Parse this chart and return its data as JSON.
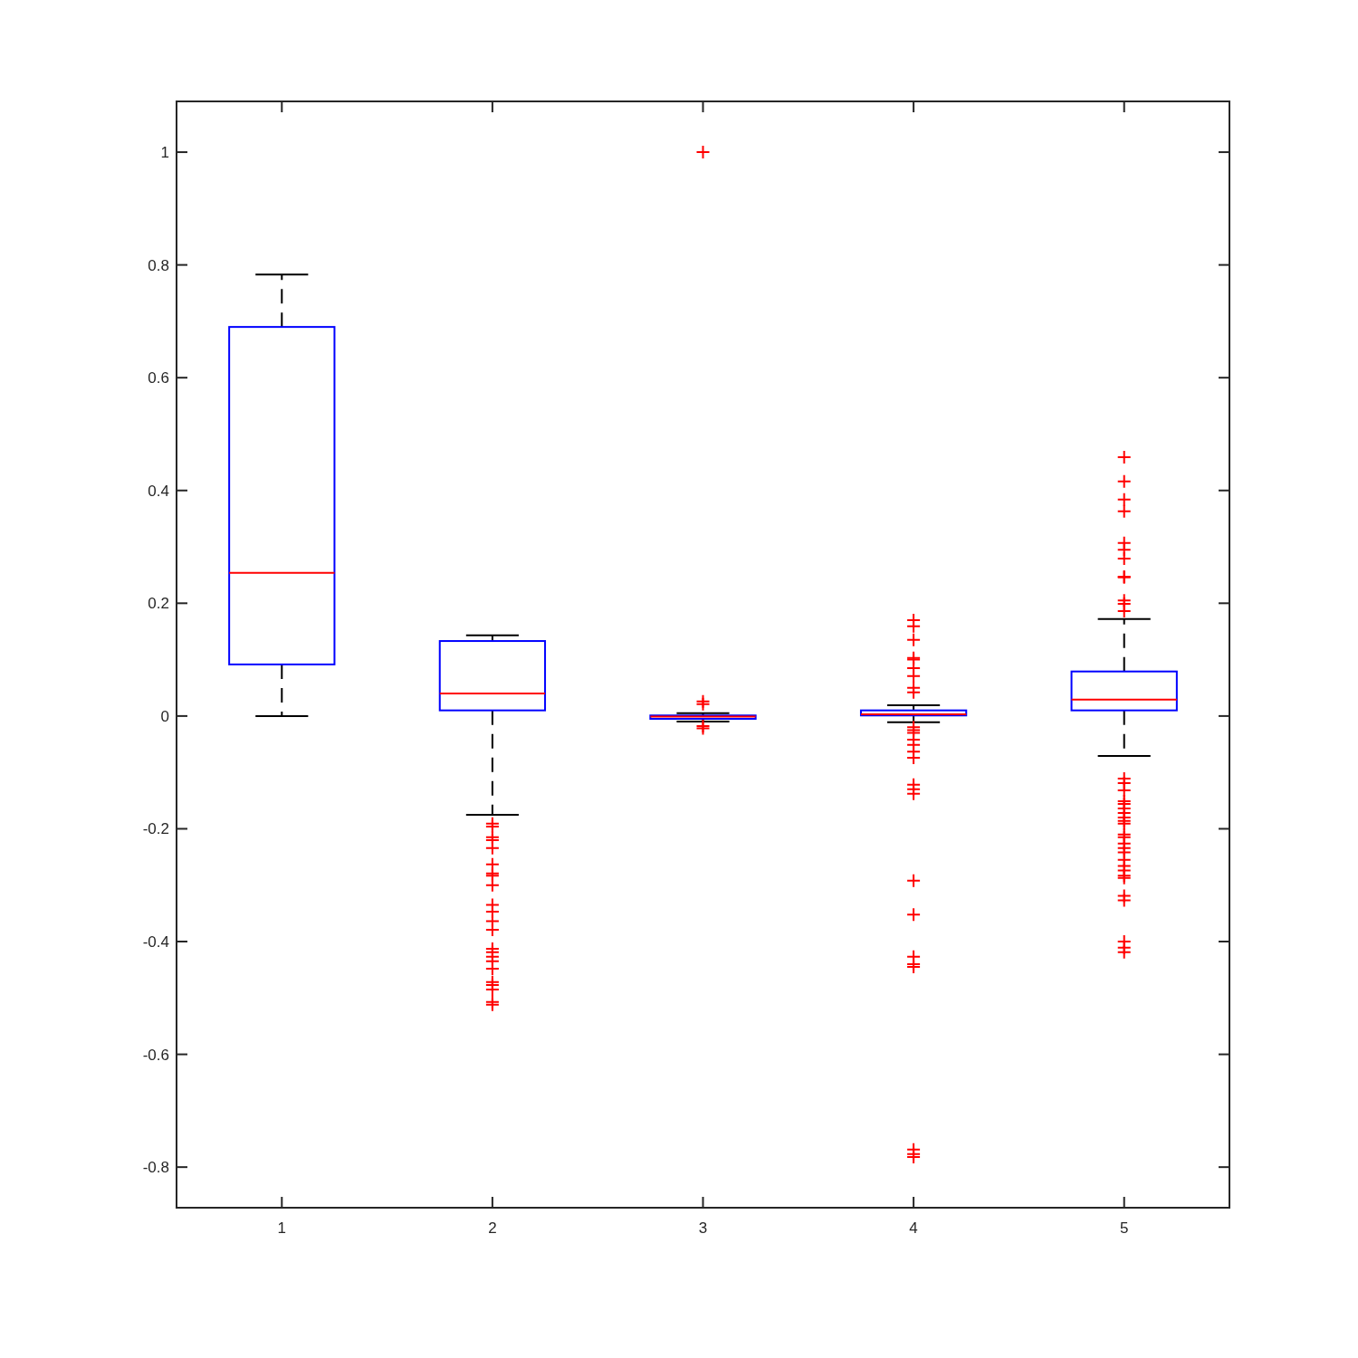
{
  "chart_data": {
    "type": "box",
    "categories": [
      "1",
      "2",
      "3",
      "4",
      "5"
    ],
    "ylim": [
      -0.872,
      1.09
    ],
    "yticks": [
      -0.8,
      -0.6,
      -0.4,
      -0.2,
      0,
      0.2,
      0.4,
      0.6,
      0.8,
      1
    ],
    "grid": false,
    "marker": "cross",
    "series": [
      {
        "color": "#0000ff",
        "boxes": [
          {
            "low": 0,
            "q1": 0.0915,
            "median": 0.254,
            "q3": 0.69,
            "high": 0.783
          },
          {
            "low": -0.175,
            "q1": 0.01,
            "median": 0.04,
            "q3": 0.133,
            "high": 0.143,
            "outliers": [
              -0.191,
              -0.196,
              -0.215,
              -0.22,
              -0.234,
              -0.263,
              -0.279,
              -0.283,
              -0.3,
              -0.335,
              -0.347,
              -0.364,
              -0.379,
              -0.413,
              -0.419,
              -0.427,
              -0.435,
              -0.448,
              -0.472,
              -0.477,
              -0.485,
              -0.507,
              -0.512
            ]
          },
          {
            "low": -0.01,
            "q1": -0.005,
            "median": -0.001,
            "q3": 0.001,
            "high": 0.005,
            "outliers": [
              1.0,
              0.026,
              0.021,
              -0.018,
              -0.022
            ]
          },
          {
            "low": -0.011,
            "q1": 0.001,
            "median": 0.003,
            "q3": 0.01,
            "high": 0.019,
            "outliers": [
              0.17,
              0.159,
              0.135,
              0.103,
              0.1,
              0.085,
              0.071,
              0.05,
              0.042,
              -0.02,
              -0.025,
              -0.03,
              -0.042,
              -0.051,
              -0.063,
              -0.074,
              -0.122,
              -0.13,
              -0.138,
              -0.292,
              -0.352,
              -0.427,
              -0.44,
              -0.445,
              -0.769,
              -0.777,
              -0.782
            ]
          },
          {
            "low": -0.071,
            "q1": 0.01,
            "median": 0.029,
            "q3": 0.079,
            "high": 0.172,
            "outliers": [
              0.459,
              0.416,
              0.384,
              0.363,
              0.307,
              0.295,
              0.279,
              0.247,
              0.246,
              0.205,
              0.199,
              0.186,
              -0.111,
              -0.119,
              -0.132,
              -0.151,
              -0.156,
              -0.164,
              -0.172,
              -0.18,
              -0.186,
              -0.191,
              -0.21,
              -0.215,
              -0.226,
              -0.234,
              -0.242,
              -0.255,
              -0.266,
              -0.274,
              -0.283,
              -0.287,
              -0.319,
              -0.327,
              -0.4,
              -0.411,
              -0.419
            ]
          }
        ]
      }
    ]
  }
}
